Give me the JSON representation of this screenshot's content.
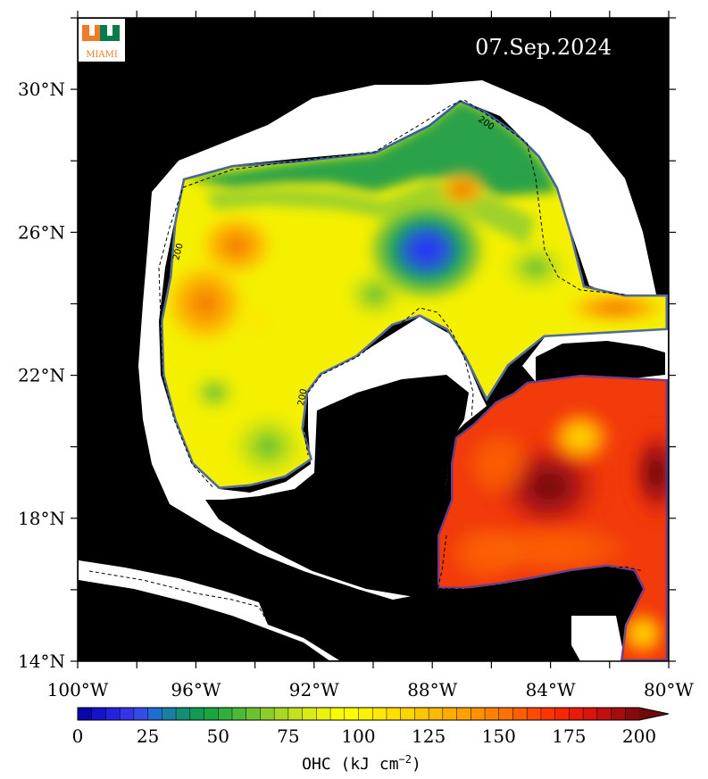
{
  "map": {
    "date": "07.Sep.2024",
    "logo_text": "MIAMI",
    "lat_labels": [
      "14°N",
      "18°N",
      "22°N",
      "26°N",
      "30°N"
    ],
    "lon_labels": [
      "100°W",
      "96°W",
      "92°W",
      "88°W",
      "84°W",
      "80°W"
    ],
    "contour_label": "200",
    "colorbar": {
      "ticks": [
        "0",
        "25",
        "50",
        "75",
        "100",
        "125",
        "150",
        "175",
        "200"
      ],
      "title_prefix": "OHC (kJ cm",
      "title_exp": "−2",
      "title_suffix": ")",
      "min": 0,
      "max": 200,
      "step": 5
    },
    "colors": {
      "land": "#000000",
      "no_data": "#ffffff",
      "date_text": "#ffffff",
      "logo_green": "#0b7a4e",
      "logo_orange": "#f07b26"
    }
  }
}
